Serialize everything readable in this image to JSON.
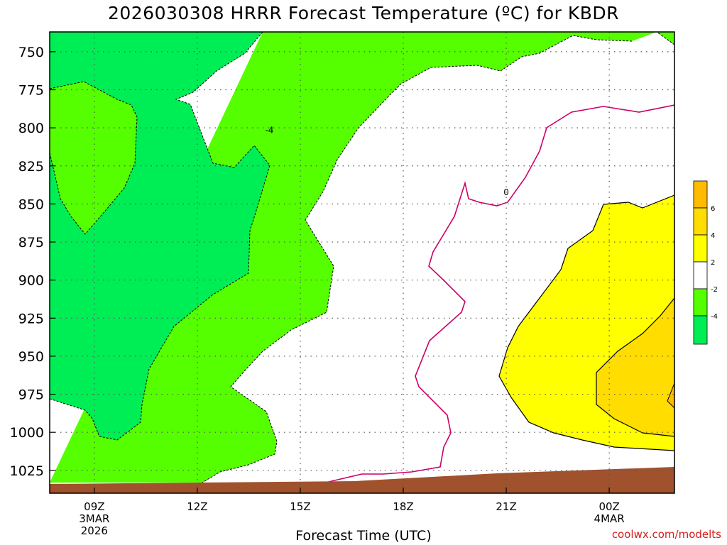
{
  "title": "2026030308 HRRR Forecast Temperature (ºC) for KBDR",
  "credit": "coolwx.com/modelts",
  "colors": {
    "green_light": "#55ff00",
    "green_dark": "#00ee55",
    "yellow": "#ffff00",
    "gold": "#ffdd00",
    "orange": "#ffbb00",
    "ground": "#a0522d",
    "zero_line": "#cc0066"
  },
  "chart_data": {
    "type": "heatmap",
    "title": "2026030308 HRRR Forecast Temperature (ºC) for KBDR",
    "xlabel": "Forecast Time (UTC)",
    "ylabel": "",
    "y_axis": {
      "reversed": true,
      "ticks": [
        750,
        775,
        800,
        825,
        850,
        875,
        900,
        925,
        950,
        975,
        1000,
        1025
      ],
      "range": [
        737,
        1040
      ]
    },
    "x_axis": {
      "range": [
        7.7,
        25.9
      ],
      "ticks": [
        {
          "value": 9,
          "label": "09Z",
          "sub1": "3MAR",
          "sub2": "2026"
        },
        {
          "value": 12,
          "label": "12Z",
          "sub1": "",
          "sub2": ""
        },
        {
          "value": 15,
          "label": "15Z",
          "sub1": "",
          "sub2": ""
        },
        {
          "value": 18,
          "label": "18Z",
          "sub1": "",
          "sub2": ""
        },
        {
          "value": 21,
          "label": "21Z",
          "sub1": "",
          "sub2": ""
        },
        {
          "value": 24,
          "label": "00Z",
          "sub1": "4MAR",
          "sub2": ""
        }
      ]
    },
    "grid": true,
    "contour_labels": [
      {
        "text": "-4",
        "x": 14.1,
        "y": 801
      },
      {
        "text": "0",
        "x": 21.0,
        "y": 842
      }
    ],
    "colorbar": {
      "levels": [
        6,
        4,
        2,
        -2,
        -4
      ],
      "labels": [
        "6",
        "4",
        "2",
        "-2",
        "-4"
      ]
    },
    "regions": [
      {
        "name": "below -4",
        "range": "< -4",
        "color": "green_dark"
      },
      {
        "name": "-4 to -2",
        "range": "-4..-2",
        "color": "green_light"
      },
      {
        "name": "-2 to 2",
        "range": "-2..2",
        "color": "white"
      },
      {
        "name": "2 to 4",
        "range": "2..4",
        "color": "yellow"
      },
      {
        "name": "4 to 6",
        "range": "4..6",
        "color": "gold"
      }
    ]
  }
}
